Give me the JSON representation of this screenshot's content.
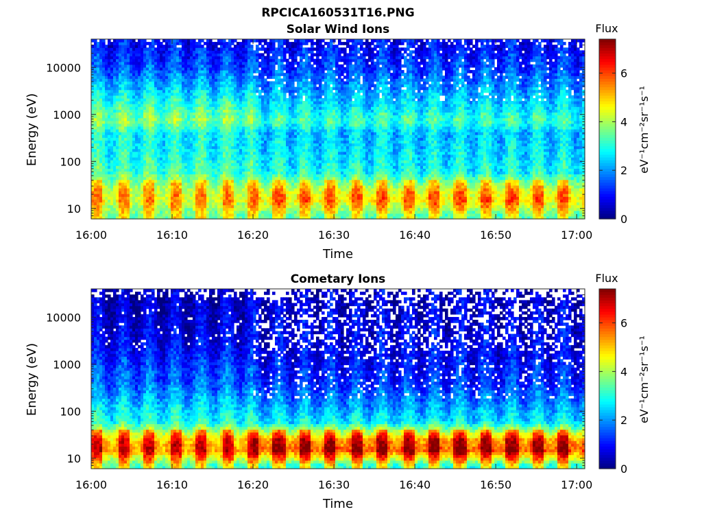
{
  "figure": {
    "title": "RPCICA160531T16.PNG",
    "background": "#ffffff",
    "text_color": "#262626"
  },
  "chart_data": [
    {
      "type": "heatmap",
      "title": "Solar Wind Ions",
      "xlabel": "Time",
      "ylabel": "Energy (eV)",
      "x_ticks": [
        "16:00",
        "16:10",
        "16:20",
        "16:30",
        "16:40",
        "16:50",
        "17:00"
      ],
      "x_range": [
        "16:00",
        "17:01"
      ],
      "y_scale": "log",
      "y_ticks": [
        10,
        100,
        1000,
        10000
      ],
      "y_range": [
        6,
        40000
      ],
      "colorbar": {
        "title": "Flux",
        "label": "eV⁻¹cm⁻²sr⁻¹s⁻¹",
        "ticks": [
          0,
          2,
          4,
          6
        ],
        "range": [
          0,
          7.4
        ],
        "colormap": "jet"
      },
      "approx_levels_by_energy": {
        "energies_eV": [
          7,
          15,
          25,
          60,
          150,
          400,
          750,
          1500,
          4000,
          10000,
          30000
        ],
        "first_20_min": [
          3.8,
          4.6,
          4.4,
          3.3,
          2.9,
          2.8,
          3.8,
          3.2,
          2.3,
          1.5,
          1.0
        ],
        "after_16_20": [
          3.6,
          5.0,
          4.6,
          2.9,
          2.6,
          2.4,
          3.2,
          2.6,
          2.0,
          1.4,
          1.0
        ]
      }
    },
    {
      "type": "heatmap",
      "title": "Cometary Ions",
      "xlabel": "Time",
      "ylabel": "Energy (eV)",
      "x_ticks": [
        "16:00",
        "16:10",
        "16:20",
        "16:30",
        "16:40",
        "16:50",
        "17:00"
      ],
      "x_range": [
        "16:00",
        "17:01"
      ],
      "y_scale": "log",
      "y_ticks": [
        10,
        100,
        1000,
        10000
      ],
      "y_range": [
        6,
        40000
      ],
      "colorbar": {
        "title": "Flux",
        "label": "eV⁻¹cm⁻²sr⁻¹s⁻¹",
        "ticks": [
          0,
          2,
          4,
          6
        ],
        "range": [
          0,
          7.4
        ],
        "colormap": "jet"
      },
      "approx_levels_by_energy": {
        "energies_eV": [
          7,
          15,
          25,
          60,
          150,
          400,
          750,
          1500,
          4000,
          10000,
          30000
        ],
        "first_20_min": [
          3.5,
          5.6,
          5.2,
          3.0,
          2.4,
          1.6,
          1.5,
          1.1,
          0.8,
          0.6,
          0.5
        ],
        "after_16_20": [
          3.3,
          6.1,
          5.6,
          2.7,
          2.0,
          1.3,
          1.1,
          0.9,
          0.8,
          0.7,
          0.6
        ]
      }
    }
  ]
}
